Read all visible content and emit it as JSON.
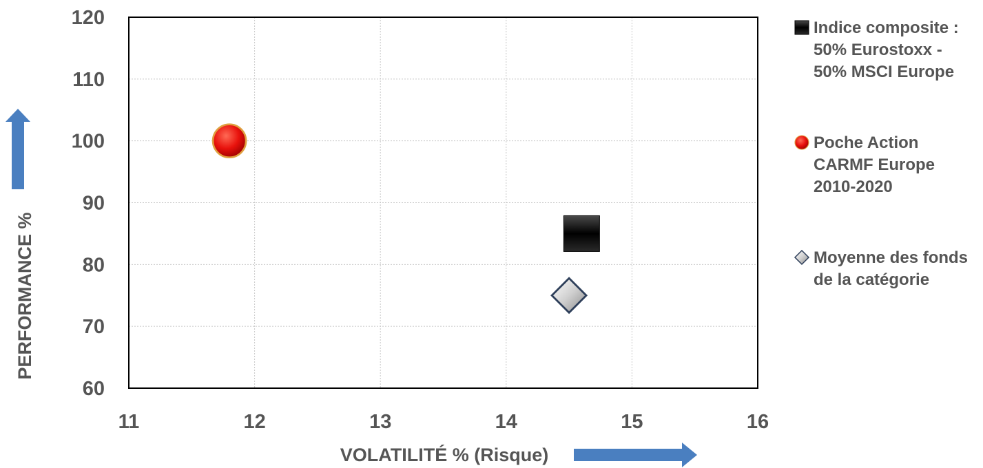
{
  "chart_data": {
    "type": "scatter",
    "title": "",
    "xlabel": "VOLATILITÉ %  (Risque)",
    "ylabel": "PERFORMANCE %",
    "xlim": [
      11,
      16
    ],
    "ylim": [
      60,
      120
    ],
    "x_ticks": [
      11,
      12,
      13,
      14,
      15,
      16
    ],
    "y_ticks": [
      60,
      70,
      80,
      90,
      100,
      110,
      120
    ],
    "grid": true,
    "legend_position": "right",
    "series": [
      {
        "name_lines": [
          "Indice composite :",
          "50% Eurostoxx -",
          "50% MSCI Europe"
        ],
        "marker": "square",
        "color": "#111111",
        "points": [
          {
            "x": 14.6,
            "y": 85
          }
        ]
      },
      {
        "name_lines": [
          "Poche Action",
          "CARMF Europe",
          "2010-2020"
        ],
        "marker": "circle",
        "color": "#e8120c",
        "points": [
          {
            "x": 11.8,
            "y": 100
          }
        ]
      },
      {
        "name_lines": [
          "Moyenne des fonds",
          "de la catégorie"
        ],
        "marker": "diamond",
        "color": "#c8c8c8",
        "points": [
          {
            "x": 14.5,
            "y": 75
          }
        ]
      }
    ],
    "axis_arrow_color": "#4a7fc0"
  }
}
